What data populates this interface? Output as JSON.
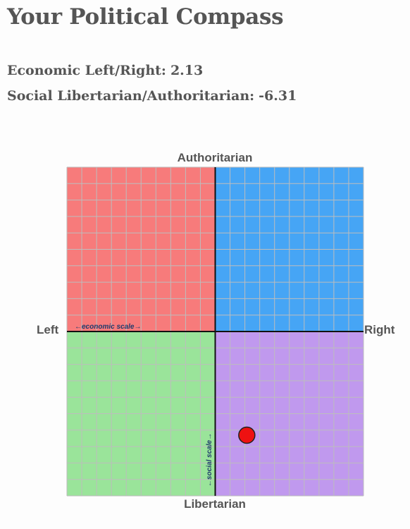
{
  "title": "Your Political Compass",
  "scores": {
    "economic_label": "Economic Left/Right:",
    "economic_value": "2.13",
    "social_label": "Social Libertarian/Authoritarian:",
    "social_value": "-6.31"
  },
  "chart_data": {
    "type": "scatter",
    "xlim": [
      -10,
      10
    ],
    "ylim": [
      -10,
      10
    ],
    "grid": true,
    "grid_step": 1,
    "axis_labels": {
      "top": "Authoritarian",
      "bottom": "Libertarian",
      "left": "Left",
      "right": "Right"
    },
    "scale_labels": {
      "x": "←economic scale→",
      "y": "←social scale→"
    },
    "quadrants": [
      {
        "color": "#f77b7b"
      },
      {
        "color": "#46a5f5"
      },
      {
        "color": "#9ae49a"
      },
      {
        "color": "#c099ee"
      }
    ],
    "points": [
      {
        "x": 2.13,
        "y": -6.31,
        "color": "#ee1111"
      }
    ]
  }
}
